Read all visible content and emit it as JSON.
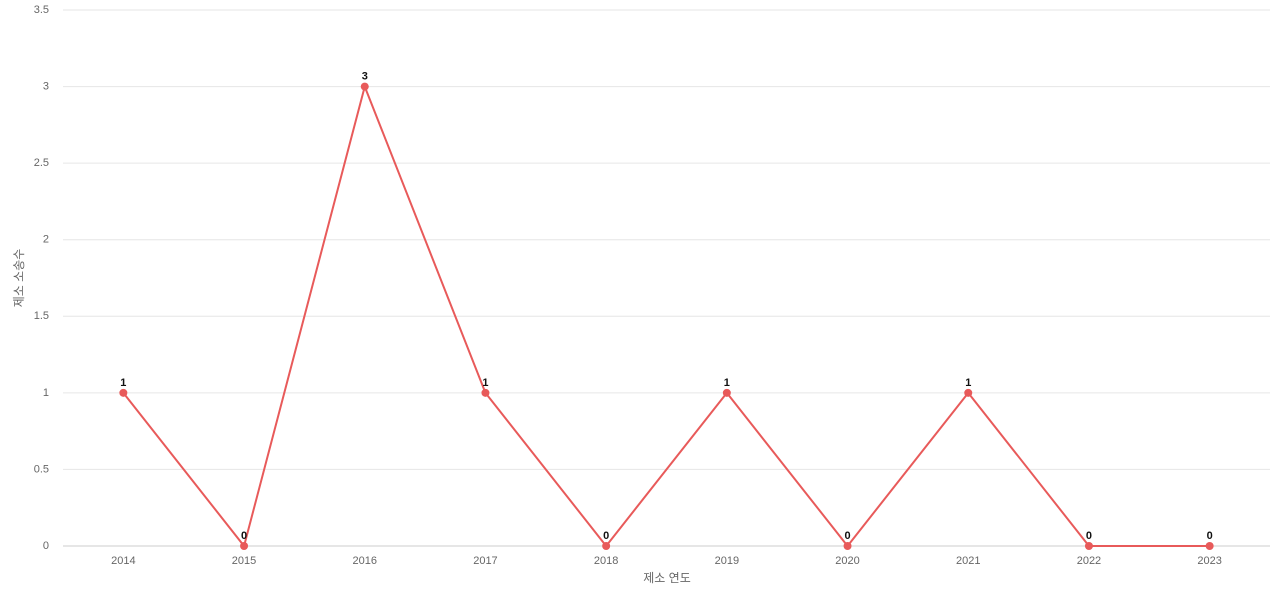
{
  "chart_data": {
    "type": "line",
    "x_label": "제소 연도",
    "y_label": "제소 소송수",
    "categories": [
      "2014",
      "2015",
      "2016",
      "2017",
      "2018",
      "2019",
      "2020",
      "2021",
      "2022",
      "2023"
    ],
    "series": [
      {
        "color": "#e85a5a",
        "values": [
          1,
          0,
          3,
          1,
          0,
          1,
          0,
          1,
          0,
          0
        ]
      }
    ],
    "ylim": [
      0,
      3.5
    ],
    "yticks": [
      0,
      0.5,
      1,
      1.5,
      2,
      2.5,
      3,
      3.5
    ],
    "grid": true
  }
}
